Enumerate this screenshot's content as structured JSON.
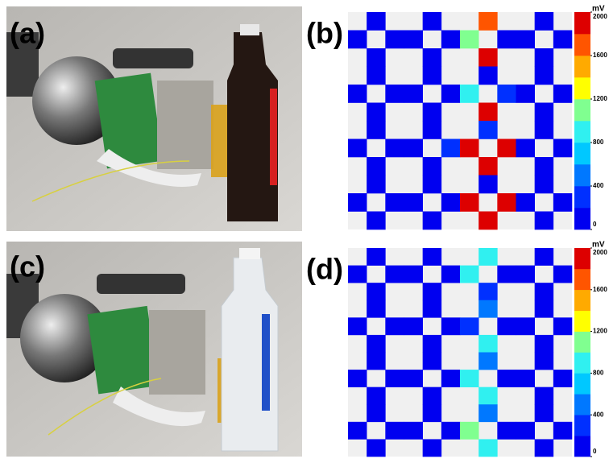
{
  "photos": [
    {
      "label": "(a)"
    },
    {
      "label": "(c)"
    }
  ],
  "chart_data": [
    {
      "type": "heatmap",
      "label": "(b)",
      "unit": "mV",
      "zlim": [
        0,
        2000
      ],
      "zticks": [
        0,
        400,
        800,
        1200,
        1600,
        2000
      ],
      "colors": [
        "#0000f0",
        "#0030ff",
        "#0078ff",
        "#00c8ff",
        "#30f0f0",
        "#80ff90",
        "#ffff00",
        "#ffaa00",
        "#ff5500",
        "#dd0000"
      ],
      "values": [
        [
          null,
          100,
          null,
          null,
          100,
          null,
          null,
          1700,
          null,
          null,
          100,
          null
        ],
        [
          100,
          null,
          100,
          100,
          null,
          100,
          1100,
          null,
          100,
          100,
          null,
          100
        ],
        [
          null,
          100,
          null,
          null,
          100,
          null,
          null,
          1950,
          null,
          null,
          100,
          null
        ],
        [
          null,
          100,
          null,
          null,
          100,
          null,
          null,
          100,
          null,
          null,
          100,
          null
        ],
        [
          100,
          null,
          100,
          100,
          null,
          100,
          900,
          null,
          300,
          100,
          null,
          100
        ],
        [
          null,
          100,
          null,
          null,
          100,
          null,
          null,
          1950,
          null,
          null,
          100,
          null
        ],
        [
          null,
          100,
          null,
          null,
          100,
          null,
          null,
          300,
          null,
          null,
          100,
          null
        ],
        [
          100,
          null,
          100,
          100,
          null,
          300,
          1950,
          null,
          1950,
          100,
          null,
          100
        ],
        [
          null,
          100,
          null,
          null,
          100,
          null,
          null,
          1950,
          null,
          null,
          100,
          null
        ],
        [
          null,
          100,
          null,
          null,
          100,
          null,
          null,
          100,
          null,
          null,
          100,
          null
        ],
        [
          100,
          null,
          100,
          100,
          null,
          100,
          1950,
          null,
          1950,
          100,
          null,
          100
        ],
        [
          null,
          100,
          null,
          null,
          100,
          null,
          null,
          1950,
          null,
          null,
          100,
          null
        ]
      ]
    },
    {
      "type": "heatmap",
      "label": "(d)",
      "unit": "mV",
      "zlim": [
        0,
        2000
      ],
      "zticks": [
        0,
        400,
        800,
        1200,
        1600,
        2000
      ],
      "colors": [
        "#0000f0",
        "#0030ff",
        "#0078ff",
        "#00c8ff",
        "#30f0f0",
        "#80ff90",
        "#ffff00",
        "#ffaa00",
        "#ff5500",
        "#dd0000"
      ],
      "values": [
        [
          null,
          100,
          null,
          null,
          100,
          null,
          null,
          850,
          null,
          null,
          100,
          null
        ],
        [
          100,
          null,
          100,
          100,
          null,
          100,
          850,
          null,
          100,
          100,
          null,
          100
        ],
        [
          null,
          100,
          null,
          null,
          100,
          null,
          null,
          300,
          null,
          null,
          100,
          null
        ],
        [
          null,
          100,
          null,
          null,
          100,
          null,
          null,
          500,
          null,
          null,
          100,
          null
        ],
        [
          100,
          null,
          100,
          100,
          null,
          100,
          300,
          null,
          100,
          100,
          null,
          100
        ],
        [
          null,
          100,
          null,
          null,
          100,
          null,
          null,
          850,
          null,
          null,
          100,
          null
        ],
        [
          null,
          100,
          null,
          null,
          100,
          null,
          null,
          400,
          null,
          null,
          100,
          null
        ],
        [
          100,
          null,
          100,
          100,
          null,
          100,
          850,
          null,
          100,
          100,
          null,
          100
        ],
        [
          null,
          100,
          null,
          null,
          100,
          null,
          null,
          850,
          null,
          null,
          100,
          null
        ],
        [
          null,
          100,
          null,
          null,
          100,
          null,
          null,
          500,
          null,
          null,
          100,
          null
        ],
        [
          100,
          null,
          100,
          100,
          null,
          100,
          1000,
          null,
          100,
          100,
          null,
          100
        ],
        [
          null,
          100,
          null,
          null,
          100,
          null,
          null,
          850,
          null,
          null,
          100,
          null
        ]
      ]
    }
  ]
}
